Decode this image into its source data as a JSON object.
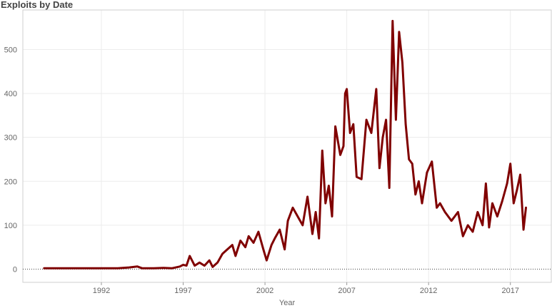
{
  "chart_data": {
    "type": "line",
    "title": "Exploits by Date",
    "xlabel": "Year",
    "ylabel": "",
    "x_ticks": [
      1992,
      1997,
      2002,
      2007,
      2012,
      2017
    ],
    "y_ticks": [
      0,
      100,
      200,
      300,
      400,
      500
    ],
    "xlim": [
      1987.2,
      2019.5
    ],
    "ylim": [
      -30,
      590
    ],
    "grid": true,
    "line_color": "#800000",
    "series": [
      {
        "x": [
          1988.5,
          1990.0,
          1991.5,
          1993.0,
          1993.7,
          1994.2,
          1994.5,
          1995.2,
          1995.8,
          1996.3,
          1996.8,
          1997.0,
          1997.2,
          1997.4,
          1997.7,
          1998.0,
          1998.3,
          1998.6,
          1998.8,
          1999.1,
          1999.4,
          1999.7,
          2000.0,
          2000.2,
          2000.5,
          2000.8,
          2001.0,
          2001.3,
          2001.6,
          2001.9,
          2002.1,
          2002.4,
          2002.6,
          2002.9,
          2003.2,
          2003.4,
          2003.7,
          2004.0,
          2004.3,
          2004.6,
          2004.9,
          2005.1,
          2005.3,
          2005.5,
          2005.7,
          2005.9,
          2006.1,
          2006.3,
          2006.6,
          2006.8,
          2006.9,
          2007.0,
          2007.2,
          2007.4,
          2007.6,
          2007.9,
          2008.2,
          2008.5,
          2008.8,
          2009.0,
          2009.2,
          2009.4,
          2009.6,
          2009.8,
          2010.0,
          2010.2,
          2010.4,
          2010.6,
          2010.8,
          2011.0,
          2011.2,
          2011.4,
          2011.6,
          2011.9,
          2012.2,
          2012.5,
          2012.7,
          2013.0,
          2013.4,
          2013.8,
          2014.1,
          2014.4,
          2014.7,
          2015.0,
          2015.3,
          2015.5,
          2015.7,
          2015.9,
          2016.2,
          2016.5,
          2016.8,
          2017.0,
          2017.2,
          2017.4,
          2017.6,
          2017.8,
          2017.95
        ],
        "y": [
          2,
          2,
          2,
          2,
          4,
          6,
          2,
          2,
          3,
          2,
          6,
          10,
          8,
          30,
          8,
          15,
          8,
          20,
          5,
          15,
          35,
          45,
          55,
          30,
          65,
          50,
          75,
          60,
          85,
          45,
          20,
          55,
          70,
          90,
          45,
          110,
          140,
          120,
          100,
          165,
          80,
          130,
          70,
          270,
          150,
          190,
          120,
          325,
          260,
          280,
          400,
          410,
          310,
          330,
          210,
          205,
          340,
          310,
          410,
          230,
          300,
          340,
          185,
          565,
          340,
          540,
          470,
          330,
          250,
          240,
          170,
          200,
          150,
          220,
          245,
          140,
          150,
          130,
          110,
          130,
          75,
          100,
          85,
          130,
          100,
          195,
          95,
          150,
          120,
          155,
          195,
          240,
          150,
          180,
          215,
          90,
          140
        ]
      }
    ]
  }
}
